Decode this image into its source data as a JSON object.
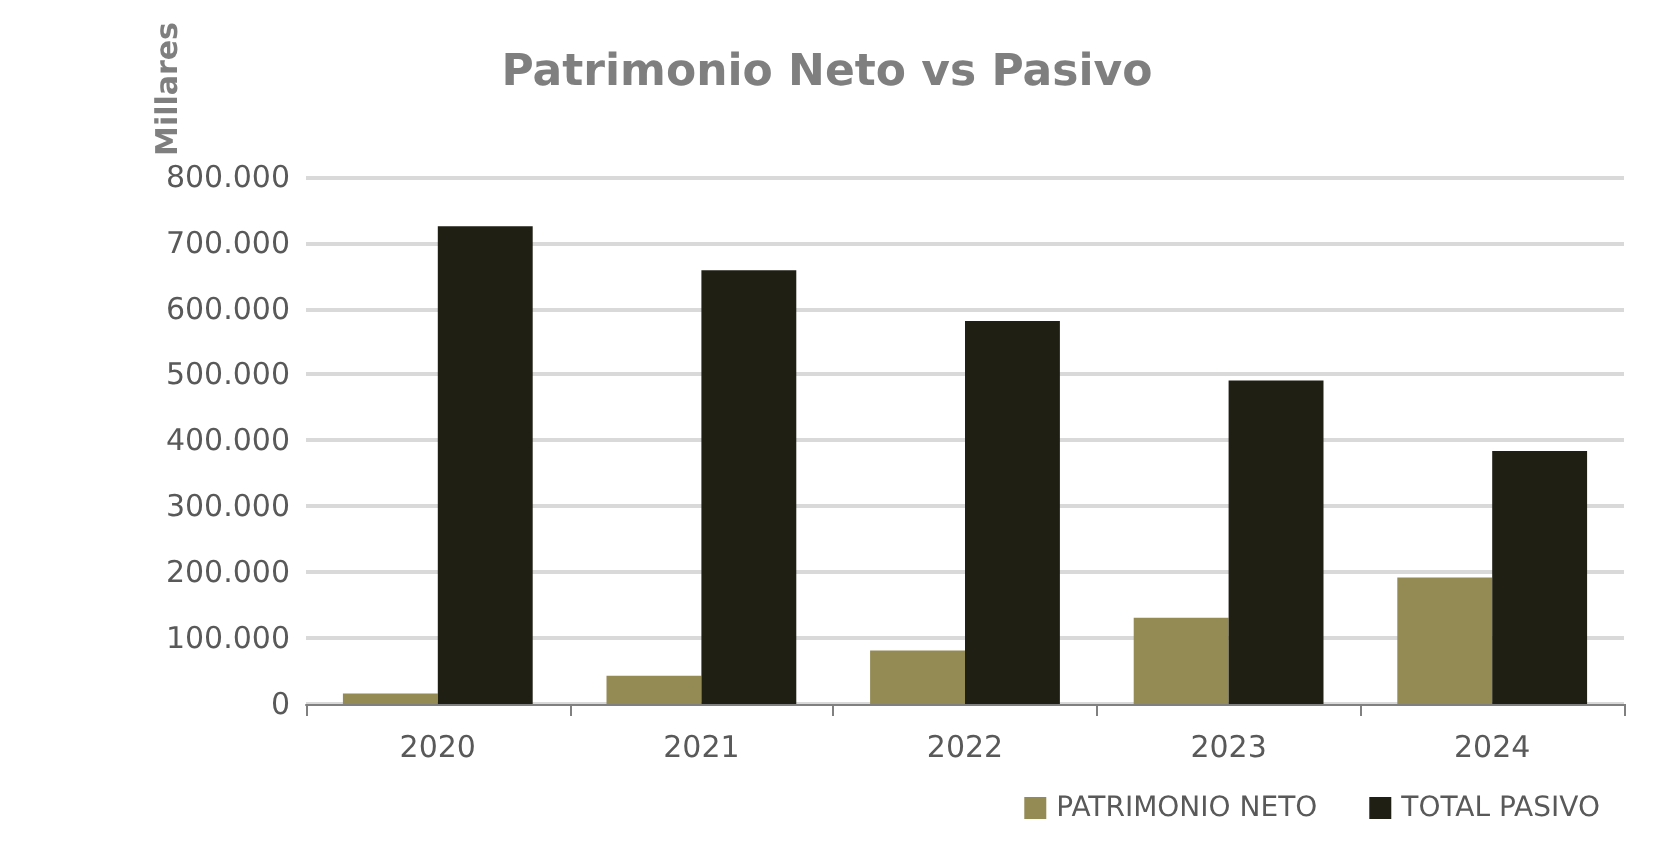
{
  "chart_data": {
    "type": "bar",
    "title": "Patrimonio Neto vs Pasivo",
    "ylabel": "Millares",
    "categories": [
      "2020",
      "2021",
      "2022",
      "2023",
      "2024"
    ],
    "series": [
      {
        "name": "PATRIMONIO NETO",
        "color": "#948a54",
        "values": [
          16000,
          43000,
          81000,
          131000,
          192000
        ]
      },
      {
        "name": "TOTAL PASIVO",
        "color": "#201f14",
        "values": [
          725000,
          658000,
          581000,
          491000,
          384000
        ]
      }
    ],
    "ylim": [
      0,
      800000
    ],
    "yticks": [
      0,
      {
        "value": 100000,
        "label": "100.000"
      },
      {
        "value": 200000,
        "label": "200.000"
      },
      {
        "value": 300000,
        "label": "300.000"
      },
      {
        "value": 400000,
        "label": "400.000"
      },
      {
        "value": 500000,
        "label": "500.000"
      },
      {
        "value": 600000,
        "label": "600.000"
      },
      {
        "value": 700000,
        "label": "700.000"
      },
      {
        "value": 800000,
        "label": "800.000"
      }
    ],
    "grid": "y",
    "legend": "bottom right"
  }
}
